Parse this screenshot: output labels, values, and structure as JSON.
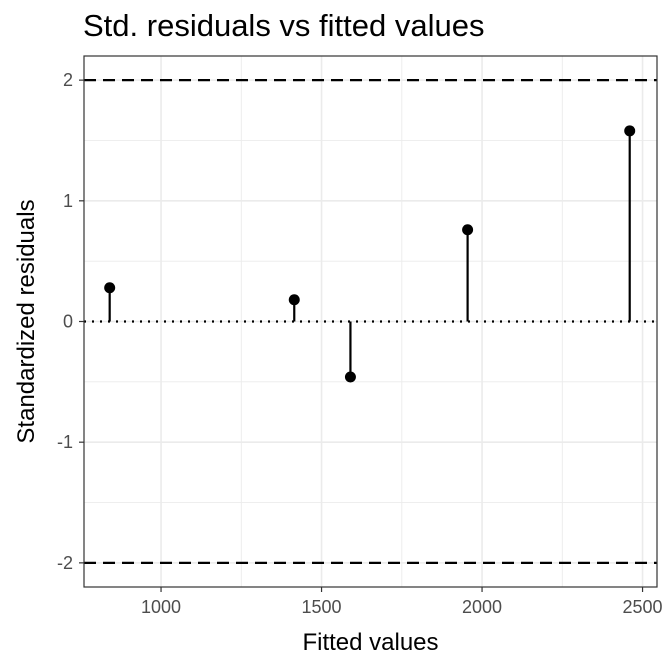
{
  "chart_data": {
    "type": "scatter",
    "title": "Std. residuals vs fitted values",
    "xlabel": "Fitted values",
    "ylabel": "Standardized residuals",
    "xlim": [
      760,
      2545
    ],
    "ylim": [
      -2.2,
      2.2
    ],
    "x_ticks": [
      1000,
      1500,
      2000,
      2500
    ],
    "x_tick_labels": [
      "1000",
      "1500",
      "2000",
      "2500"
    ],
    "y_ticks": [
      -2,
      -1,
      0,
      1,
      2
    ],
    "y_tick_labels": [
      "-2",
      "-1",
      "0",
      "1",
      "2"
    ],
    "grid": true,
    "points": [
      {
        "x": 840,
        "y": 0.28
      },
      {
        "x": 1415,
        "y": 0.18
      },
      {
        "x": 1590,
        "y": -0.46
      },
      {
        "x": 1955,
        "y": 0.76
      },
      {
        "x": 2460,
        "y": 1.58
      }
    ],
    "reference_lines": [
      {
        "y": 2,
        "style": "dashed"
      },
      {
        "y": 0,
        "style": "dotted"
      },
      {
        "y": -2,
        "style": "dashed"
      }
    ],
    "point_color": "#000000",
    "grid_color": "#ebebeb",
    "panel_border_color": "#333333"
  }
}
